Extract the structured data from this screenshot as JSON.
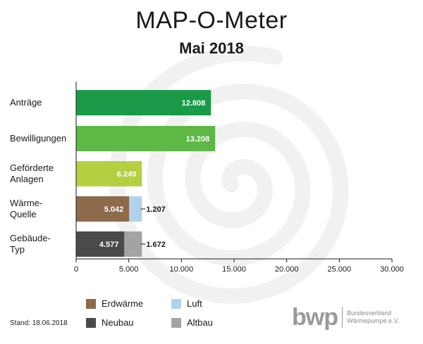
{
  "header": {
    "title": "MAP-O-Meter",
    "subtitle": "Mai 2018"
  },
  "footer": {
    "stand": "Stand: 18.06.2018"
  },
  "logo": {
    "word": "bwp",
    "org": "Bundesverband\nWärmepumpe e.V."
  },
  "chart_data": {
    "type": "bar",
    "orientation": "horizontal",
    "title": "MAP-O-Meter",
    "subtitle": "Mai 2018",
    "xlim": [
      0,
      30000
    ],
    "xticks": [
      0,
      5000,
      10000,
      15000,
      20000,
      25000,
      30000
    ],
    "xtick_labels": [
      "0",
      "5.000",
      "10.000",
      "15.000",
      "20.000",
      "25.000",
      "30.000"
    ],
    "grid": false,
    "legend_position": "bottom",
    "categories": [
      "Anträge",
      "Bewilligungen",
      "Geförderte Anlagen",
      "Wärme-Quelle",
      "Gebäude-Typ"
    ],
    "category_lines": [
      [
        "Anträge"
      ],
      [
        "Bewilligungen"
      ],
      [
        "Geförderte",
        "Anlagen"
      ],
      [
        "Wärme-",
        "Quelle"
      ],
      [
        "Gebäude-",
        "Typ"
      ]
    ],
    "bars": [
      {
        "category": "Anträge",
        "segments": [
          {
            "value": 12808,
            "label": "12.808",
            "color": "#1a9a48"
          }
        ]
      },
      {
        "category": "Bewilligungen",
        "segments": [
          {
            "value": 13208,
            "label": "13.208",
            "color": "#5db846"
          }
        ]
      },
      {
        "category": "Geförderte Anlagen",
        "segments": [
          {
            "value": 6249,
            "label": "6.249",
            "color": "#b4cf3f"
          }
        ]
      },
      {
        "category": "Wärme-Quelle",
        "segments": [
          {
            "series": "Erdwärme",
            "value": 5042,
            "label": "5.042",
            "color": "#8c6a4a"
          },
          {
            "series": "Luft",
            "value": 1207,
            "label": "1.207",
            "color": "#b3d2ea"
          }
        ]
      },
      {
        "category": "Gebäude-Typ",
        "segments": [
          {
            "series": "Neubau",
            "value": 4577,
            "label": "4.577",
            "color": "#4a4a4a"
          },
          {
            "series": "Altbau",
            "value": 1672,
            "label": "1.672",
            "color": "#a3a3a3"
          }
        ]
      }
    ],
    "legend": [
      {
        "name": "Erdwärme",
        "color": "#8c6a4a"
      },
      {
        "name": "Luft",
        "color": "#b3d2ea"
      },
      {
        "name": "Neubau",
        "color": "#4a4a4a"
      },
      {
        "name": "Altbau",
        "color": "#a3a3a3"
      }
    ]
  }
}
